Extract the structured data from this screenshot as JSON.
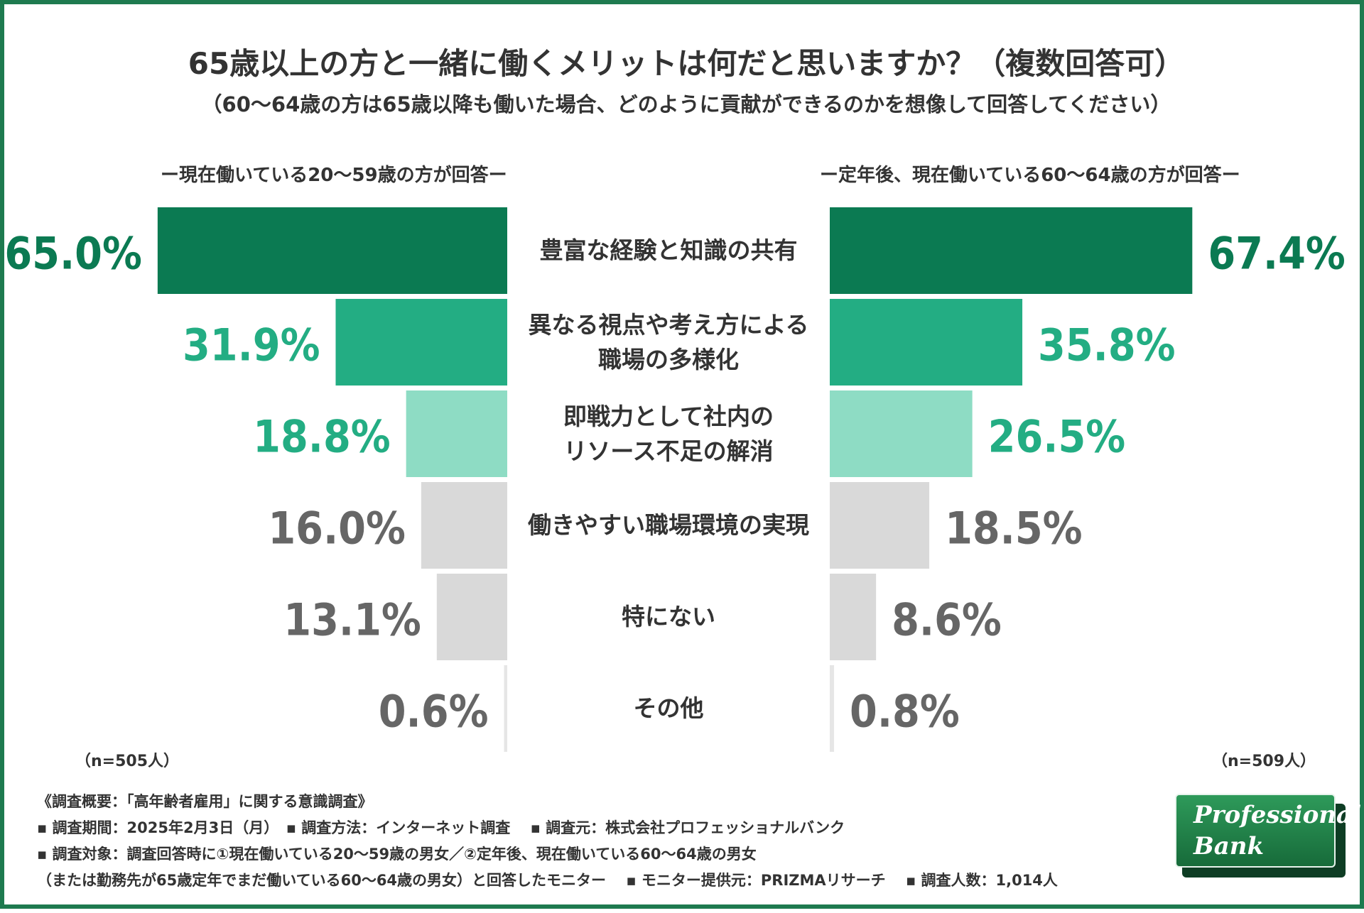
{
  "title": "65歳以上の方と一緒に働くメリットは何だと思いますか？（複数回答可）",
  "subtitle": "（60〜64歳の方は65歳以降も働いた場合、どのように貢献ができるのかを想像して回答してください）",
  "left_label": "ー現在働いている20〜59歳の方が回答ー",
  "right_label": "ー定年後、現在働いている60〜64歳の方が回答ー",
  "n_left": "（n=505人）",
  "n_right": "（n=509人）",
  "chart_data": {
    "type": "bar",
    "orientation": "horizontal-butterfly",
    "unit": "%",
    "categories": [
      "豊富な経験と知識の共有",
      "異なる視点や考え方による\n職場の多様化",
      "即戦力として社内の\nリソース不足の解消",
      "働きやすい職場環境の実現",
      "特にない",
      "その他"
    ],
    "series": [
      {
        "name": "ー現在働いている20〜59歳の方が回答ー",
        "side": "left",
        "values": [
          65.0,
          31.9,
          18.8,
          16.0,
          13.1,
          0.6
        ],
        "labels": [
          "65.0%",
          "31.9%",
          "18.8%",
          "16.0%",
          "13.1%",
          "0.6%"
        ]
      },
      {
        "name": "ー定年後、現在働いている60〜64歳の方が回答ー",
        "side": "right",
        "values": [
          67.4,
          35.8,
          26.5,
          18.5,
          8.6,
          0.8
        ],
        "labels": [
          "67.4%",
          "35.8%",
          "26.5%",
          "18.5%",
          "8.6%",
          "0.8%"
        ]
      }
    ],
    "colors": {
      "rank1": "#0b7a52",
      "rank2": "#23ad83",
      "rank3": "#8edcc4",
      "other": "#d9d9d9",
      "label_rank1": "#0b7a52",
      "label_rank2": "#23ad83",
      "label_other": "#666666"
    },
    "xlim": [
      0,
      70
    ]
  },
  "footer": {
    "line1": "《調査概要：「高年齢者雇用」に関する意識調査》",
    "line2": "▪ 調査期間：2025年2月3日（月）　▪ 調査方法：インターネット調査　 ▪ 調査元：株式会社プロフェッショナルバンク",
    "line3": "▪ 調査対象：調査回答時に①現在働いている20〜59歳の男女／②定年後、現在働いている60〜64歳の男女",
    "line4": "（または勤務先が65歳定年でまだ働いている60〜64歳の男女）と回答したモニター　 ▪ モニター提供元：PRIZMAリサーチ　 ▪ 調査人数：1,014人"
  },
  "logo": {
    "line1": "Professional",
    "line2": "Bank"
  }
}
